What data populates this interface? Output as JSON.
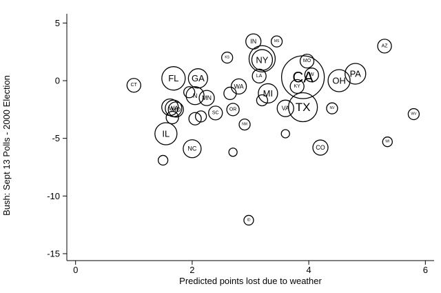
{
  "chart_data": {
    "type": "scatter",
    "title": "",
    "xlabel": "Predicted points lost due to weather",
    "ylabel": "Bush: Sept 13 Polls - 2000 Election",
    "xlim": [
      -0.15,
      6.15
    ],
    "ylim": [
      -15.6,
      5.8
    ],
    "xticks": [
      0,
      2,
      4,
      6
    ],
    "yticks": [
      5,
      0,
      -5,
      -10,
      -15
    ],
    "grid": false,
    "points": [
      {
        "label": "CT",
        "x": 1.0,
        "y": -0.4,
        "size": 10
      },
      {
        "label": "FL",
        "x": 1.68,
        "y": 0.2,
        "size": 17
      },
      {
        "label": "GA",
        "x": 2.1,
        "y": 0.2,
        "size": 14
      },
      {
        "label": "",
        "x": 1.95,
        "y": -1.0,
        "size": 8
      },
      {
        "label": "N",
        "x": 2.05,
        "y": -1.3,
        "size": 13
      },
      {
        "label": "MN",
        "x": 2.25,
        "y": -1.5,
        "size": 11
      },
      {
        "label": "",
        "x": 1.62,
        "y": -2.3,
        "size": 12
      },
      {
        "label": "WA",
        "x": 1.68,
        "y": -2.4,
        "size": 12
      },
      {
        "label": "MD",
        "x": 1.72,
        "y": -2.5,
        "size": 11
      },
      {
        "label": "",
        "x": 1.66,
        "y": -3.2,
        "size": 9
      },
      {
        "label": "",
        "x": 2.05,
        "y": -3.3,
        "size": 9
      },
      {
        "label": "",
        "x": 2.15,
        "y": -3.1,
        "size": 8
      },
      {
        "label": "SC",
        "x": 2.4,
        "y": -2.8,
        "size": 10
      },
      {
        "label": "IL",
        "x": 1.55,
        "y": -4.6,
        "size": 16
      },
      {
        "label": "NC",
        "x": 2.0,
        "y": -5.9,
        "size": 13
      },
      {
        "label": "",
        "x": 1.5,
        "y": -6.9,
        "size": 7
      },
      {
        "label": "KS",
        "x": 2.6,
        "y": 2.0,
        "size": 8
      },
      {
        "label": "WA",
        "x": 2.8,
        "y": -0.5,
        "size": 11
      },
      {
        "label": "",
        "x": 2.65,
        "y": -1.1,
        "size": 9
      },
      {
        "label": "OR",
        "x": 2.7,
        "y": -2.5,
        "size": 9
      },
      {
        "label": "NM",
        "x": 2.9,
        "y": -3.8,
        "size": 8
      },
      {
        "label": "",
        "x": 2.7,
        "y": -6.2,
        "size": 6
      },
      {
        "label": "ID",
        "x": 2.97,
        "y": -12.1,
        "size": 7
      },
      {
        "label": "IN",
        "x": 3.05,
        "y": 3.4,
        "size": 11
      },
      {
        "label": "MS",
        "x": 3.45,
        "y": 3.4,
        "size": 8
      },
      {
        "label": "",
        "x": 3.2,
        "y": 1.9,
        "size": 19
      },
      {
        "label": "NY",
        "x": 3.2,
        "y": 1.8,
        "size": 15
      },
      {
        "label": "LA",
        "x": 3.15,
        "y": 0.4,
        "size": 10
      },
      {
        "label": "MI",
        "x": 3.3,
        "y": -1.1,
        "size": 14
      },
      {
        "label": "",
        "x": 3.2,
        "y": -1.7,
        "size": 8
      },
      {
        "label": "VA",
        "x": 3.6,
        "y": -2.4,
        "size": 12
      },
      {
        "label": "KY",
        "x": 3.8,
        "y": -0.5,
        "size": 10
      },
      {
        "label": "CA",
        "x": 3.9,
        "y": 0.3,
        "size": 31
      },
      {
        "label": "TX",
        "x": 3.9,
        "y": -2.3,
        "size": 21
      },
      {
        "label": "MO",
        "x": 3.97,
        "y": 1.7,
        "size": 10
      },
      {
        "label": "W",
        "x": 4.05,
        "y": 0.5,
        "size": 10
      },
      {
        "label": "NV",
        "x": 4.4,
        "y": -2.4,
        "size": 8
      },
      {
        "label": "",
        "x": 3.6,
        "y": -4.6,
        "size": 6
      },
      {
        "label": "CO",
        "x": 4.2,
        "y": -5.8,
        "size": 11
      },
      {
        "label": "OH",
        "x": 4.52,
        "y": 0.0,
        "size": 16
      },
      {
        "label": "PA",
        "x": 4.8,
        "y": 0.6,
        "size": 15
      },
      {
        "label": "AZ",
        "x": 5.3,
        "y": 3.0,
        "size": 10
      },
      {
        "label": "WV",
        "x": 5.8,
        "y": -2.9,
        "size": 8
      },
      {
        "label": "WI",
        "x": 5.35,
        "y": -5.3,
        "size": 7
      }
    ]
  }
}
